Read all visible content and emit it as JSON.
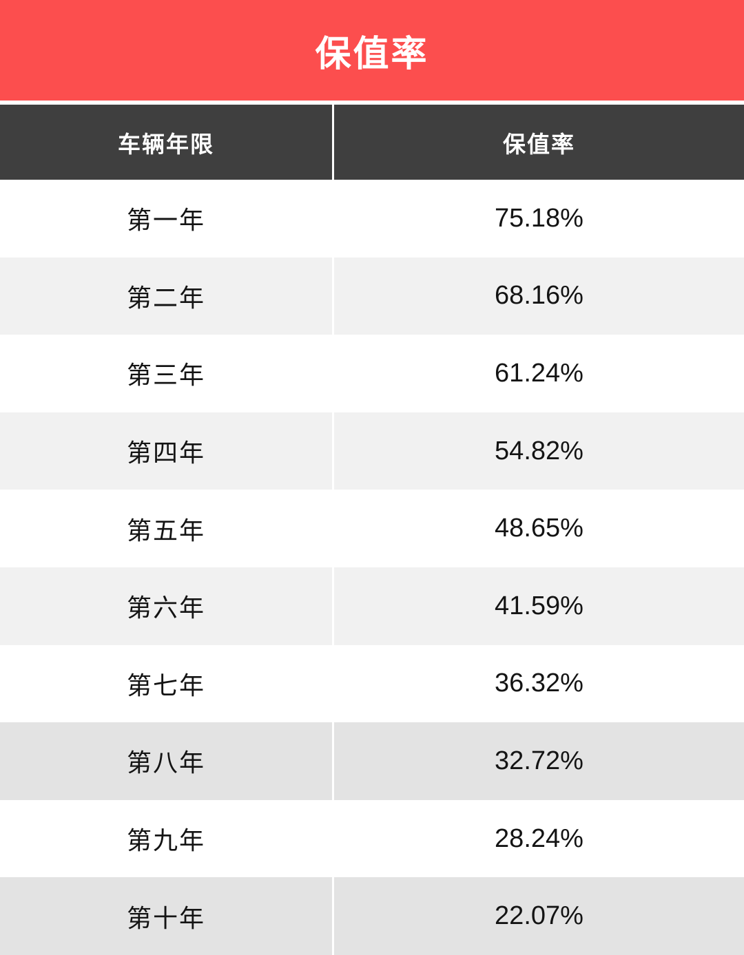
{
  "banner": {
    "title": "保值率"
  },
  "table": {
    "header": {
      "col1": "车辆年限",
      "col2": "保值率"
    },
    "rows": [
      {
        "year": "第一年",
        "rate": "75.18%"
      },
      {
        "year": "第二年",
        "rate": "68.16%"
      },
      {
        "year": "第三年",
        "rate": "61.24%"
      },
      {
        "year": "第四年",
        "rate": "54.82%"
      },
      {
        "year": "第五年",
        "rate": "48.65%"
      },
      {
        "year": "第六年",
        "rate": "41.59%"
      },
      {
        "year": "第七年",
        "rate": "36.32%"
      },
      {
        "year": "第八年",
        "rate": "32.72%"
      },
      {
        "year": "第九年",
        "rate": "28.24%"
      },
      {
        "year": "第十年",
        "rate": "22.07%"
      }
    ]
  },
  "colors": {
    "banner_bg": "#fc4e4e",
    "banner_text": "#ffffff",
    "header_bg": "#3f3f3f",
    "header_text": "#ffffff",
    "body_text": "#141414",
    "row_white": "#ffffff",
    "row_light": "#f1f1f1",
    "row_dark": "#e3e3e3"
  },
  "chart_data": {
    "type": "table",
    "title": "保值率",
    "columns": [
      "车辆年限",
      "保值率"
    ],
    "categories": [
      "第一年",
      "第二年",
      "第三年",
      "第四年",
      "第五年",
      "第六年",
      "第七年",
      "第八年",
      "第九年",
      "第十年"
    ],
    "values": [
      75.18,
      68.16,
      61.24,
      54.82,
      48.65,
      41.59,
      36.32,
      32.72,
      28.24,
      22.07
    ],
    "unit": "%"
  }
}
